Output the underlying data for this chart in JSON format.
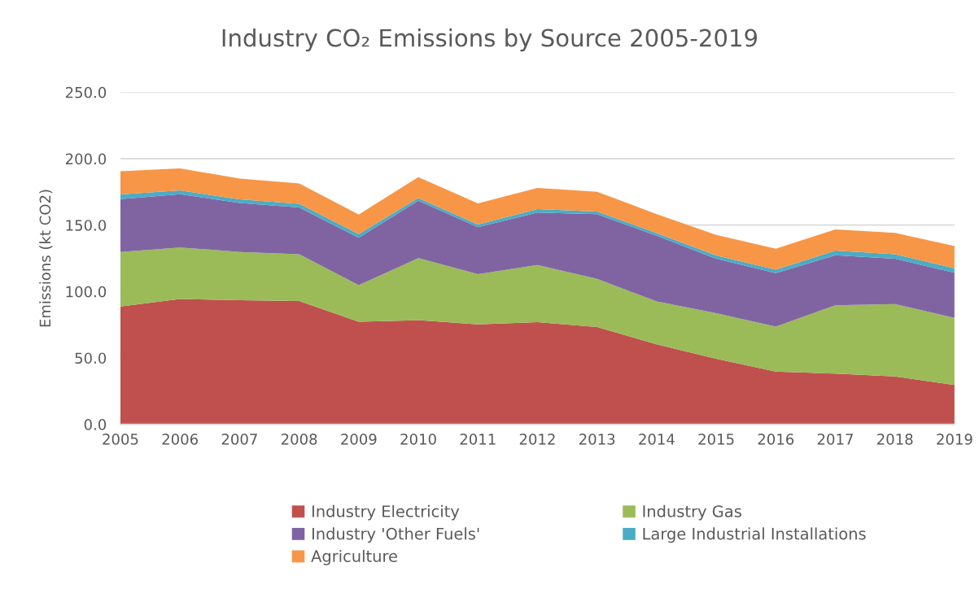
{
  "chart_data": {
    "type": "area",
    "title": "Industry CO₂ Emissions by Source 2005-2019",
    "ylabel": "Emissions (kt CO2)",
    "stacked": true,
    "categories": [
      "2005",
      "2006",
      "2007",
      "2008",
      "2009",
      "2010",
      "2011",
      "2012",
      "2013",
      "2014",
      "2015",
      "2016",
      "2017",
      "2018",
      "2019"
    ],
    "series": [
      {
        "name": "Industry Electricity",
        "color": "#c0504d",
        "values": [
          88.8,
          94.4,
          93.4,
          92.8,
          77.2,
          78.4,
          75.3,
          77.0,
          73.3,
          60.3,
          49.4,
          39.8,
          38.2,
          36.1,
          29.6
        ]
      },
      {
        "name": "Industry Gas",
        "color": "#9bbb59",
        "values": [
          41.0,
          38.8,
          36.4,
          35.3,
          27.6,
          46.7,
          37.7,
          42.9,
          36.3,
          32.2,
          34.3,
          33.7,
          51.5,
          54.4,
          50.6
        ]
      },
      {
        "name": "Industry 'Other Fuels'",
        "color": "#8064a2",
        "values": [
          39.8,
          40.1,
          36.8,
          35.2,
          35.6,
          43.3,
          35.4,
          39.6,
          48.7,
          49.5,
          41.0,
          40.3,
          37.6,
          34.2,
          34.0
        ]
      },
      {
        "name": "Large Industrial Installations",
        "color": "#4bacc6",
        "values": [
          3.5,
          2.9,
          2.8,
          2.8,
          2.9,
          2.0,
          2.0,
          2.5,
          2.0,
          2.0,
          2.4,
          2.6,
          3.5,
          3.4,
          3.3
        ]
      },
      {
        "name": "Agriculture",
        "color": "#f79646",
        "values": [
          17.4,
          16.5,
          15.6,
          15.2,
          14.7,
          15.7,
          15.9,
          16.0,
          14.8,
          14.3,
          15.5,
          15.8,
          15.9,
          16.0,
          16.7
        ]
      }
    ],
    "ylim": [
      0,
      250
    ],
    "yticks": [
      {
        "value": 0,
        "label": "0.0"
      },
      {
        "value": 50,
        "label": "50.0"
      },
      {
        "value": 100,
        "label": "100.0"
      },
      {
        "value": 150,
        "label": "150.0"
      },
      {
        "value": 200,
        "label": "200.0"
      },
      {
        "value": 250,
        "label": "250.0"
      }
    ],
    "grid": "y",
    "legend": "bottom"
  }
}
